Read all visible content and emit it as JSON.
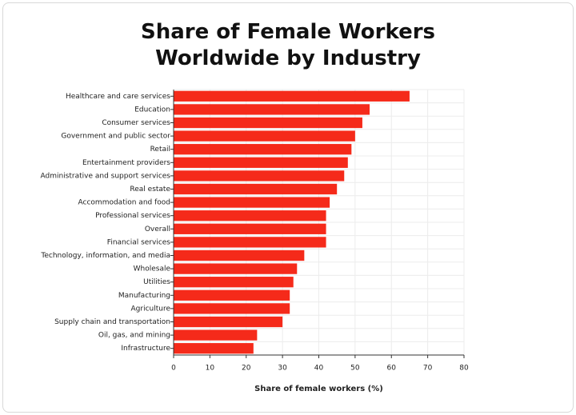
{
  "chart_data": {
    "type": "barh",
    "title": "Share of Female Workers Worldwide by Industry",
    "xlabel": "Share of female workers (%)",
    "categories": [
      "Healthcare and care services",
      "Education",
      "Consumer services",
      "Government and public sector",
      "Retail",
      "Entertainment providers",
      "Administrative and support services",
      "Real estate",
      "Accommodation and food",
      "Professional services",
      "Overall",
      "Financial services",
      "Technology, information, and media",
      "Wholesale",
      "Utilities",
      "Manufacturing",
      "Agriculture",
      "Supply chain and transportation",
      "Oil, gas, and mining",
      "Infrastructure"
    ],
    "values": [
      65,
      54,
      52,
      50,
      49,
      48,
      47,
      45,
      43,
      42,
      42,
      42,
      36,
      34,
      33,
      32,
      32,
      30,
      23,
      22
    ],
    "color": "#f52a1a",
    "xlim": [
      0,
      80
    ],
    "xticks": [
      0,
      10,
      20,
      30,
      40,
      50,
      60,
      70,
      80
    ],
    "grid": true
  }
}
